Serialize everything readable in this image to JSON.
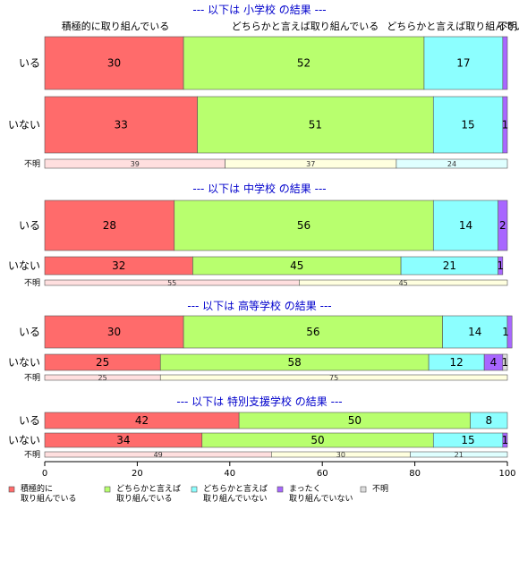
{
  "chart_data": {
    "type": "bar",
    "orientation": "horizontal",
    "stacked": true,
    "xlim": [
      0,
      100
    ],
    "x_ticks": [
      "0",
      "20",
      "40",
      "60",
      "80",
      "100"
    ],
    "colors": [
      "#ff6b6b",
      "#b8ff6e",
      "#8cffff",
      "#a866ff",
      "#dddddd"
    ],
    "legend_placement": "bottom",
    "legend": [
      {
        "lines": [
          "積極的に",
          "取り組んでいる"
        ]
      },
      {
        "lines": [
          "どちらかと言えば",
          "取り組んでいる"
        ]
      },
      {
        "lines": [
          "どちらかと言えば",
          "取り組んでいない"
        ]
      },
      {
        "lines": [
          "まったく",
          "取り組んでいない"
        ]
      },
      {
        "lines": [
          "不明"
        ]
      }
    ],
    "top_category_labels": [
      "積極的に取り組んでいる",
      "どちらかと言えば取り組んでいる",
      "どちらかと言えば取り組んでいない",
      "不明"
    ],
    "panels": [
      {
        "title": "--- 以下は 小学校 の結果 ---",
        "rows": [
          {
            "label": "いる",
            "values": [
              30,
              52,
              17,
              1,
              0
            ],
            "value_labels": [
              "30",
              "52",
              "17",
              "",
              ""
            ]
          },
          {
            "label": "いない",
            "values": [
              33,
              51,
              15,
              1,
              0
            ],
            "value_labels": [
              "33",
              "51",
              "15",
              "1",
              ""
            ]
          },
          {
            "label": "不明",
            "values": [
              39,
              37,
              24
            ],
            "value_labels": [
              "39",
              "37",
              "24"
            ]
          }
        ]
      },
      {
        "title": "--- 以下は 中学校 の結果 ---",
        "rows": [
          {
            "label": "いる",
            "values": [
              28,
              56,
              14,
              2,
              0
            ],
            "value_labels": [
              "28",
              "56",
              "14",
              "2",
              ""
            ]
          },
          {
            "label": "いない",
            "values": [
              32,
              45,
              21,
              1,
              0
            ],
            "value_labels": [
              "32",
              "45",
              "21",
              "1",
              ""
            ]
          },
          {
            "label": "不明",
            "values": [
              55,
              45
            ],
            "value_labels": [
              "55",
              "45"
            ]
          }
        ]
      },
      {
        "title": "--- 以下は 高等学校 の結果 ---",
        "rows": [
          {
            "label": "いる",
            "values": [
              30,
              56,
              14,
              1,
              0
            ],
            "value_labels": [
              "30",
              "56",
              "14",
              "1",
              ""
            ]
          },
          {
            "label": "いない",
            "values": [
              25,
              58,
              12,
              4,
              1
            ],
            "value_labels": [
              "25",
              "58",
              "12",
              "4",
              "1"
            ]
          },
          {
            "label": "不明",
            "values": [
              25,
              75
            ],
            "value_labels": [
              "25",
              "75"
            ]
          }
        ]
      },
      {
        "title": "--- 以下は 特別支援学校 の結果 ---",
        "rows": [
          {
            "label": "いる",
            "values": [
              42,
              50,
              8,
              0,
              0
            ],
            "value_labels": [
              "42",
              "50",
              "8",
              "",
              ""
            ]
          },
          {
            "label": "いない",
            "values": [
              34,
              50,
              15,
              1,
              0
            ],
            "value_labels": [
              "34",
              "50",
              "15",
              "1",
              ""
            ]
          },
          {
            "label": "不明",
            "values": [
              49,
              30,
              21
            ],
            "value_labels": [
              "49",
              "30",
              "21"
            ]
          }
        ]
      }
    ]
  }
}
